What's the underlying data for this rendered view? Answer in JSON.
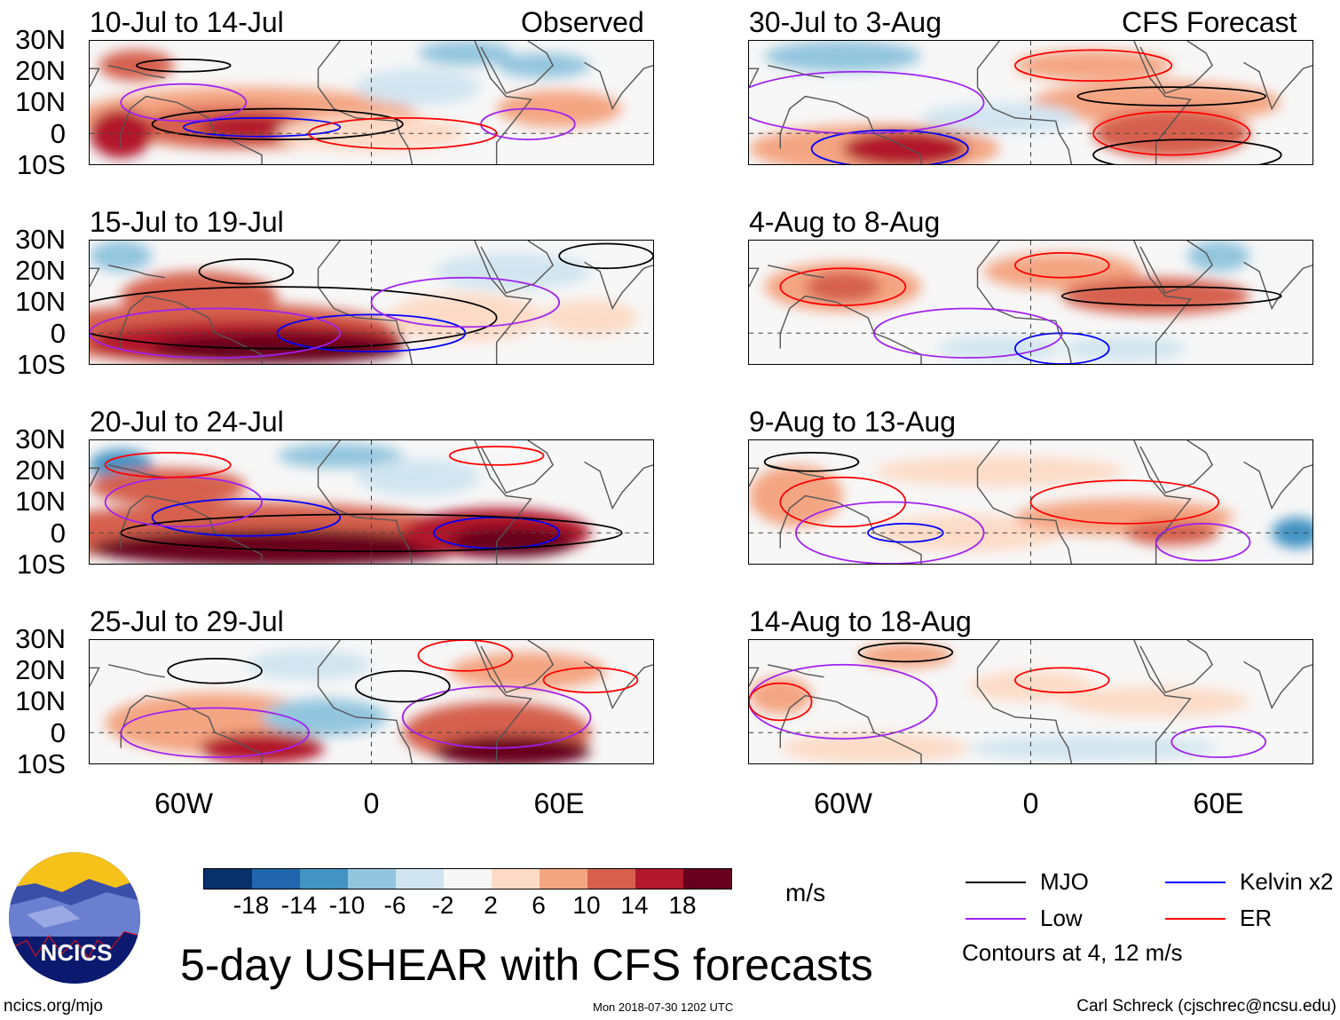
{
  "header": {
    "observed_label": "Observed",
    "forecast_label": "CFS Forecast"
  },
  "panels": [
    {
      "title": "10-Jul to 14-Jul",
      "column": "observed"
    },
    {
      "title": "15-Jul to 19-Jul",
      "column": "observed"
    },
    {
      "title": "20-Jul to 24-Jul",
      "column": "observed"
    },
    {
      "title": "25-Jul to 29-Jul",
      "column": "observed"
    },
    {
      "title": "30-Jul to 3-Aug",
      "column": "forecast"
    },
    {
      "title": "4-Aug to 8-Aug",
      "column": "forecast"
    },
    {
      "title": "9-Aug to 13-Aug",
      "column": "forecast"
    },
    {
      "title": "14-Aug to 18-Aug",
      "column": "forecast"
    }
  ],
  "axes": {
    "lat_labels": [
      "30N",
      "20N",
      "10N",
      "0",
      "10S"
    ],
    "lon_labels": [
      "60W",
      "0",
      "60E"
    ],
    "lon_range": [
      -90,
      90
    ],
    "lat_range": [
      -10,
      30
    ]
  },
  "colorbar": {
    "labels": [
      "-18",
      "-14",
      "-10",
      "-6",
      "-2",
      "2",
      "6",
      "10",
      "14",
      "18"
    ],
    "colors": [
      "#08306b",
      "#2166ac",
      "#4393c3",
      "#92c5de",
      "#d1e5f0",
      "#f7f7f7",
      "#fddbc7",
      "#f4a582",
      "#d6604d",
      "#b2182b",
      "#67001f"
    ],
    "units": "m/s"
  },
  "legend": {
    "items": [
      {
        "label": "MJO",
        "color": "#000000"
      },
      {
        "label": "Kelvin x2",
        "color": "#0000ff"
      },
      {
        "label": "Low",
        "color": "#a020f0"
      },
      {
        "label": "ER",
        "color": "#ff0000"
      }
    ],
    "note": "Contours at 4, 12 m/s"
  },
  "title": "5-day USHEAR with CFS forecasts",
  "logo": {
    "text": "NCICS"
  },
  "footer": {
    "url": "ncics.org/mjo",
    "timestamp": "Mon 2018-07-30 1202 UTC",
    "credit": "Carl Schreck (cjschrec@ncsu.edu)"
  }
}
